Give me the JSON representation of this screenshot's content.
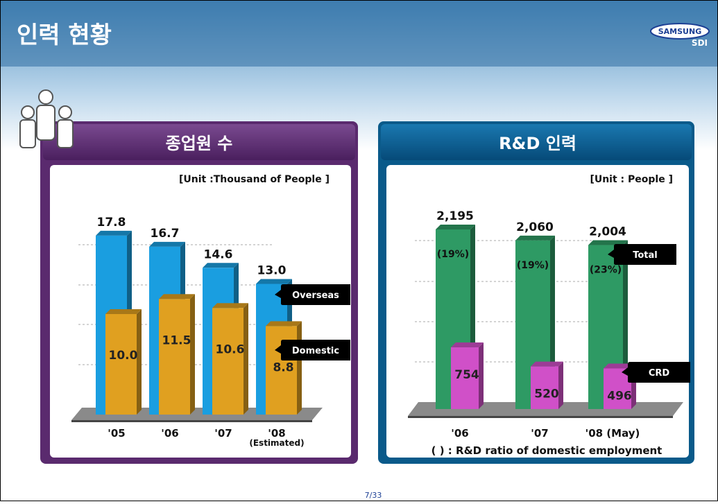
{
  "page": {
    "title": "인력 현황",
    "logo": "SAMSUNG",
    "logo_sub": "SDI",
    "page_number": "7/33"
  },
  "chart_data": [
    {
      "type": "bar",
      "title": "종업원 수",
      "unit": "[Unit :Thousand of People ]",
      "categories": [
        "'05",
        "'06",
        "'07",
        "'08"
      ],
      "x_note": "(Estimated)",
      "ylim": [
        0,
        20
      ],
      "series": [
        {
          "name": "Overseas",
          "color": "#1a9ee0",
          "values": [
            17.8,
            16.7,
            14.6,
            13
          ],
          "value_labels": [
            "17.8",
            "16.7",
            "14.6",
            "13.0"
          ]
        },
        {
          "name": "Domestic",
          "color": "#e0a020",
          "values": [
            10,
            11.5,
            10.6,
            8.8
          ],
          "value_labels": [
            "10.0",
            "11.5",
            "10.6",
            "8.8"
          ]
        }
      ]
    },
    {
      "type": "bar",
      "title": "R&D 인력",
      "unit": "[Unit : People ]",
      "categories": [
        "'06",
        "'07",
        "'08 (May)"
      ],
      "ylim": [
        0,
        2500
      ],
      "ratio_labels": [
        "(19%)",
        "(19%)",
        "(23%)"
      ],
      "footnote": "( ) : R&D ratio of domestic employment",
      "series": [
        {
          "name": "Total",
          "color": "#2e9a64",
          "values": [
            2195,
            2060,
            2004
          ],
          "value_labels": [
            "2,195",
            "2,060",
            "2,004"
          ]
        },
        {
          "name": "CRD",
          "color": "#d050c8",
          "values": [
            754,
            520,
            496
          ]
        }
      ]
    }
  ]
}
